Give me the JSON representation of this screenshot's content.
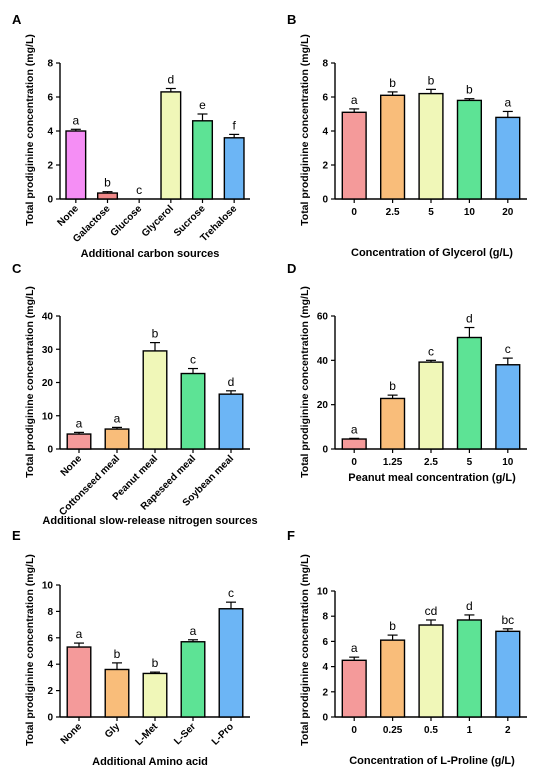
{
  "chart_data": [
    {
      "type": "bar",
      "panel": "A",
      "ylabel": "Total prodiginine concentration (mg/L)",
      "xlabel": "Additional carbon sources",
      "ylim": [
        0,
        8
      ],
      "yticks": [
        0,
        2,
        4,
        6,
        8
      ],
      "categories": [
        "None",
        "Galactose",
        "Glucose",
        "Glycerol",
        "Sucrose",
        "Trehalose"
      ],
      "values": [
        4.0,
        0.35,
        0,
        6.3,
        4.6,
        3.6
      ],
      "errors": [
        0.1,
        0.08,
        0,
        0.2,
        0.4,
        0.2
      ],
      "letters": [
        "a",
        "b",
        "c",
        "d",
        "e",
        "f"
      ],
      "colors": [
        "#f58ef5",
        "#f08a8a",
        "#f6f6f6",
        "#f0f7b8",
        "#5de395",
        "#6cb5f5"
      ],
      "rotated": true
    },
    {
      "type": "bar",
      "panel": "B",
      "ylabel": "Total prodiginine concentration (mg/L)",
      "xlabel": "Concentration of Glycerol (g/L)",
      "ylim": [
        0,
        8
      ],
      "yticks": [
        0,
        2,
        4,
        6,
        8
      ],
      "categories": [
        "0",
        "2.5",
        "5",
        "10",
        "20"
      ],
      "values": [
        5.1,
        6.1,
        6.2,
        5.8,
        4.8
      ],
      "errors": [
        0.2,
        0.2,
        0.25,
        0.1,
        0.35
      ],
      "letters": [
        "a",
        "b",
        "b",
        "b",
        "a"
      ],
      "colors": [
        "#f49a9a",
        "#f9bd7a",
        "#f0f7b8",
        "#5de395",
        "#6cb5f5"
      ],
      "rotated": false
    },
    {
      "type": "bar",
      "panel": "C",
      "ylabel": "Total prodiginine concentration (mg/L)",
      "xlabel": "Additional slow-release nitrogen sources",
      "ylim": [
        0,
        40
      ],
      "yticks": [
        0,
        10,
        20,
        30,
        40
      ],
      "categories": [
        "None",
        "Cottonseed meal",
        "Peanut meal",
        "Rapeseed meal",
        "Soybean meal"
      ],
      "values": [
        4.5,
        6.0,
        29.5,
        22.7,
        16.5
      ],
      "errors": [
        0.5,
        0.5,
        2.5,
        1.5,
        1.0
      ],
      "letters": [
        "a",
        "a",
        "b",
        "c",
        "d"
      ],
      "colors": [
        "#f49a9a",
        "#f9bd7a",
        "#f0f7b8",
        "#5de395",
        "#6cb5f5"
      ],
      "rotated": true
    },
    {
      "type": "bar",
      "panel": "D",
      "ylabel": "Total prodiginine concentration (mg/L)",
      "xlabel": "Peanut meal concentration (g/L)",
      "ylim": [
        0,
        60
      ],
      "yticks": [
        0,
        20,
        40,
        60
      ],
      "categories": [
        "0",
        "1.25",
        "2.5",
        "5",
        "10"
      ],
      "values": [
        4.5,
        22.8,
        39.2,
        50.3,
        38.0
      ],
      "errors": [
        0.3,
        1.5,
        0.8,
        4.5,
        3.0
      ],
      "letters": [
        "a",
        "b",
        "c",
        "d",
        "c"
      ],
      "colors": [
        "#f49a9a",
        "#f9bd7a",
        "#f0f7b8",
        "#5de395",
        "#6cb5f5"
      ],
      "rotated": false
    },
    {
      "type": "bar",
      "panel": "E",
      "ylabel": "Total prodiginine concentration (mg/L)",
      "xlabel": "Additional Amino acid",
      "ylim": [
        0,
        10
      ],
      "yticks": [
        0,
        2,
        4,
        6,
        8,
        10
      ],
      "categories": [
        "None",
        "Gly",
        "L-Met",
        "L-Ser",
        "L-Pro"
      ],
      "values": [
        5.3,
        3.6,
        3.3,
        5.7,
        8.2
      ],
      "errors": [
        0.3,
        0.5,
        0.1,
        0.15,
        0.5
      ],
      "letters": [
        "a",
        "b",
        "b",
        "a",
        "c"
      ],
      "colors": [
        "#f49a9a",
        "#f9bd7a",
        "#f0f7b8",
        "#5de395",
        "#6cb5f5"
      ],
      "rotated": true
    },
    {
      "type": "bar",
      "panel": "F",
      "ylabel": "Total prodiginine concentration (mg/L)",
      "xlabel": "Concentration of L-Proline (g/L)",
      "ylim": [
        0,
        10
      ],
      "yticks": [
        0,
        2,
        4,
        6,
        8,
        10
      ],
      "categories": [
        "0",
        "0.25",
        "0.5",
        "1",
        "2"
      ],
      "values": [
        4.5,
        6.1,
        7.3,
        7.7,
        6.8
      ],
      "errors": [
        0.25,
        0.4,
        0.4,
        0.4,
        0.2
      ],
      "letters": [
        "a",
        "b",
        "cd",
        "d",
        "bc"
      ],
      "colors": [
        "#f49a9a",
        "#f9bd7a",
        "#f0f7b8",
        "#5de395",
        "#6cb5f5"
      ],
      "rotated": false
    }
  ]
}
